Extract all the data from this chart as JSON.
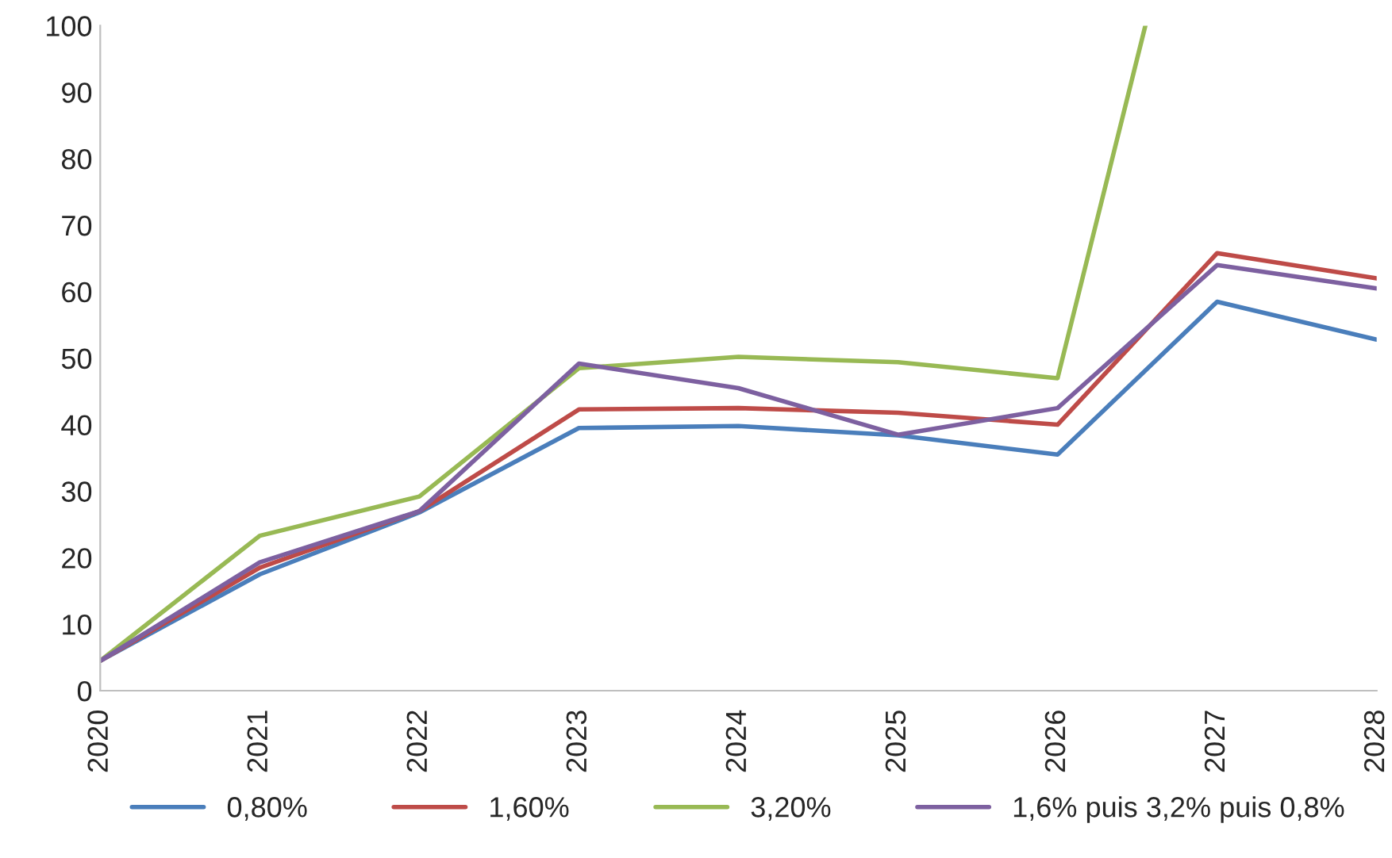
{
  "chart_data": {
    "type": "line",
    "x": [
      2020,
      2021,
      2022,
      2023,
      2024,
      2025,
      2026,
      2027,
      2028
    ],
    "xlim": [
      2020,
      2028
    ],
    "xticks": [
      2020,
      2021,
      2022,
      2023,
      2024,
      2025,
      2026,
      2027,
      2028
    ],
    "ylim": [
      0,
      100
    ],
    "yticks": [
      0,
      10,
      20,
      30,
      40,
      50,
      60,
      70,
      80,
      90,
      100
    ],
    "grid": false,
    "legend": "bottom",
    "marker": "none",
    "line_style": "solid",
    "series": [
      {
        "name": "0,80%",
        "color": "#4a7ebb",
        "values": [
          4.5,
          17.5,
          26.8,
          39.5,
          39.8,
          38.4,
          35.5,
          58.5,
          52.8
        ]
      },
      {
        "name": "1,60%",
        "color": "#be4b48",
        "values": [
          4.5,
          18.5,
          27,
          42.3,
          42.5,
          41.8,
          40,
          65.8,
          62
        ]
      },
      {
        "name": "3,20%",
        "color": "#98b954",
        "x": [
          2020,
          2021,
          2022,
          2023,
          2024,
          2025,
          2026,
          2026.55
        ],
        "values": [
          4.5,
          23.3,
          29.2,
          48.5,
          50.2,
          49.4,
          47,
          100
        ]
      },
      {
        "name": "1,6% puis 3,2% puis 0,8%",
        "color": "#7d60a0",
        "values": [
          4.5,
          19.3,
          27,
          49.2,
          45.5,
          38.5,
          42.5,
          64,
          60.5
        ]
      }
    ]
  }
}
